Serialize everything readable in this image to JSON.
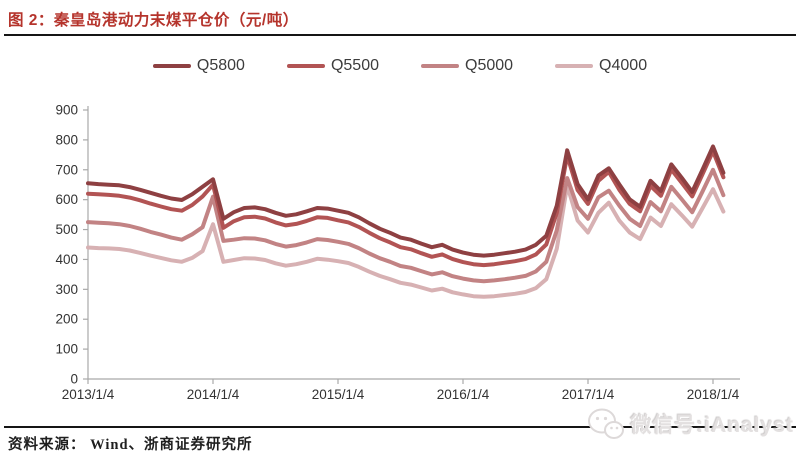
{
  "header": {
    "title": "图 2：秦皇岛港动力末煤平仓价（元/吨）"
  },
  "footer": {
    "source_label": "资料来源： Wind、浙商证券研究所",
    "watermark_text": "微信号:iAnalyst",
    "watermark_icon": "wechat-icon"
  },
  "colors": {
    "accent_red": "#b5342c",
    "axis_gray": "#a9a9a9",
    "tick_text": "#333333",
    "rule_black": "#151515",
    "watermark_gray": "#e3e0e0"
  },
  "chart_data": {
    "type": "line",
    "title": "秦皇岛港动力末煤平仓价（元/吨）",
    "xlabel": "",
    "ylabel": "",
    "ylim": [
      0,
      900
    ],
    "y_ticks": [
      0,
      100,
      200,
      300,
      400,
      500,
      600,
      700,
      800,
      900
    ],
    "grid": false,
    "legend_position": "top-center",
    "x_interval": "monthly",
    "x_start": "2013-01",
    "x_end": "2018-02",
    "x_tick_positions": [
      0,
      12,
      24,
      36,
      48,
      60
    ],
    "x_tick_labels": [
      "2013/1/4",
      "2014/1/4",
      "2015/1/4",
      "2016/1/4",
      "2017/1/4",
      "2018/1/4"
    ],
    "series": [
      {
        "name": "Q5800",
        "color": "#8e4042",
        "values": [
          655,
          652,
          650,
          648,
          642,
          633,
          623,
          613,
          604,
          599,
          618,
          643,
          668,
          536,
          558,
          572,
          574,
          568,
          556,
          546,
          551,
          561,
          572,
          570,
          563,
          556,
          541,
          521,
          503,
          489,
          473,
          466,
          453,
          441,
          449,
          433,
          423,
          416,
          413,
          416,
          421,
          426,
          433,
          449,
          479,
          580,
          765,
          652,
          601,
          681,
          705,
          651,
          601,
          576,
          663,
          629,
          718,
          673,
          626,
          701,
          778,
          690
        ]
      },
      {
        "name": "Q5500",
        "color": "#b25454",
        "values": [
          620,
          618,
          616,
          613,
          607,
          598,
          587,
          577,
          568,
          563,
          582,
          611,
          650,
          506,
          528,
          541,
          543,
          537,
          524,
          514,
          519,
          529,
          541,
          539,
          531,
          524,
          509,
          489,
          471,
          457,
          441,
          434,
          421,
          409,
          417,
          401,
          391,
          384,
          381,
          384,
          389,
          394,
          401,
          417,
          450,
          556,
          748,
          632,
          586,
          663,
          693,
          633,
          586,
          561,
          646,
          613,
          701,
          656,
          611,
          686,
          762,
          675
        ]
      },
      {
        "name": "Q5000",
        "color": "#c28384",
        "values": [
          525,
          523,
          521,
          518,
          512,
          503,
          492,
          483,
          473,
          466,
          484,
          508,
          610,
          462,
          466,
          471,
          470,
          464,
          452,
          443,
          448,
          457,
          468,
          465,
          459,
          452,
          438,
          420,
          404,
          392,
          378,
          372,
          361,
          350,
          357,
          344,
          336,
          330,
          327,
          330,
          334,
          339,
          345,
          360,
          392,
          498,
          672,
          575,
          536,
          608,
          630,
          580,
          536,
          512,
          592,
          561,
          643,
          601,
          558,
          628,
          700,
          615
        ]
      },
      {
        "name": "Q4000",
        "color": "#d7b1b3",
        "values": [
          440,
          438,
          437,
          435,
          430,
          422,
          413,
          405,
          397,
          392,
          405,
          428,
          518,
          392,
          398,
          404,
          403,
          398,
          387,
          379,
          384,
          392,
          402,
          399,
          394,
          388,
          375,
          359,
          345,
          334,
          322,
          316,
          306,
          296,
          302,
          290,
          283,
          277,
          275,
          277,
          281,
          285,
          291,
          304,
          334,
          436,
          648,
          530,
          490,
          556,
          590,
          530,
          490,
          468,
          540,
          512,
          585,
          548,
          510,
          572,
          635,
          560
        ]
      }
    ]
  }
}
